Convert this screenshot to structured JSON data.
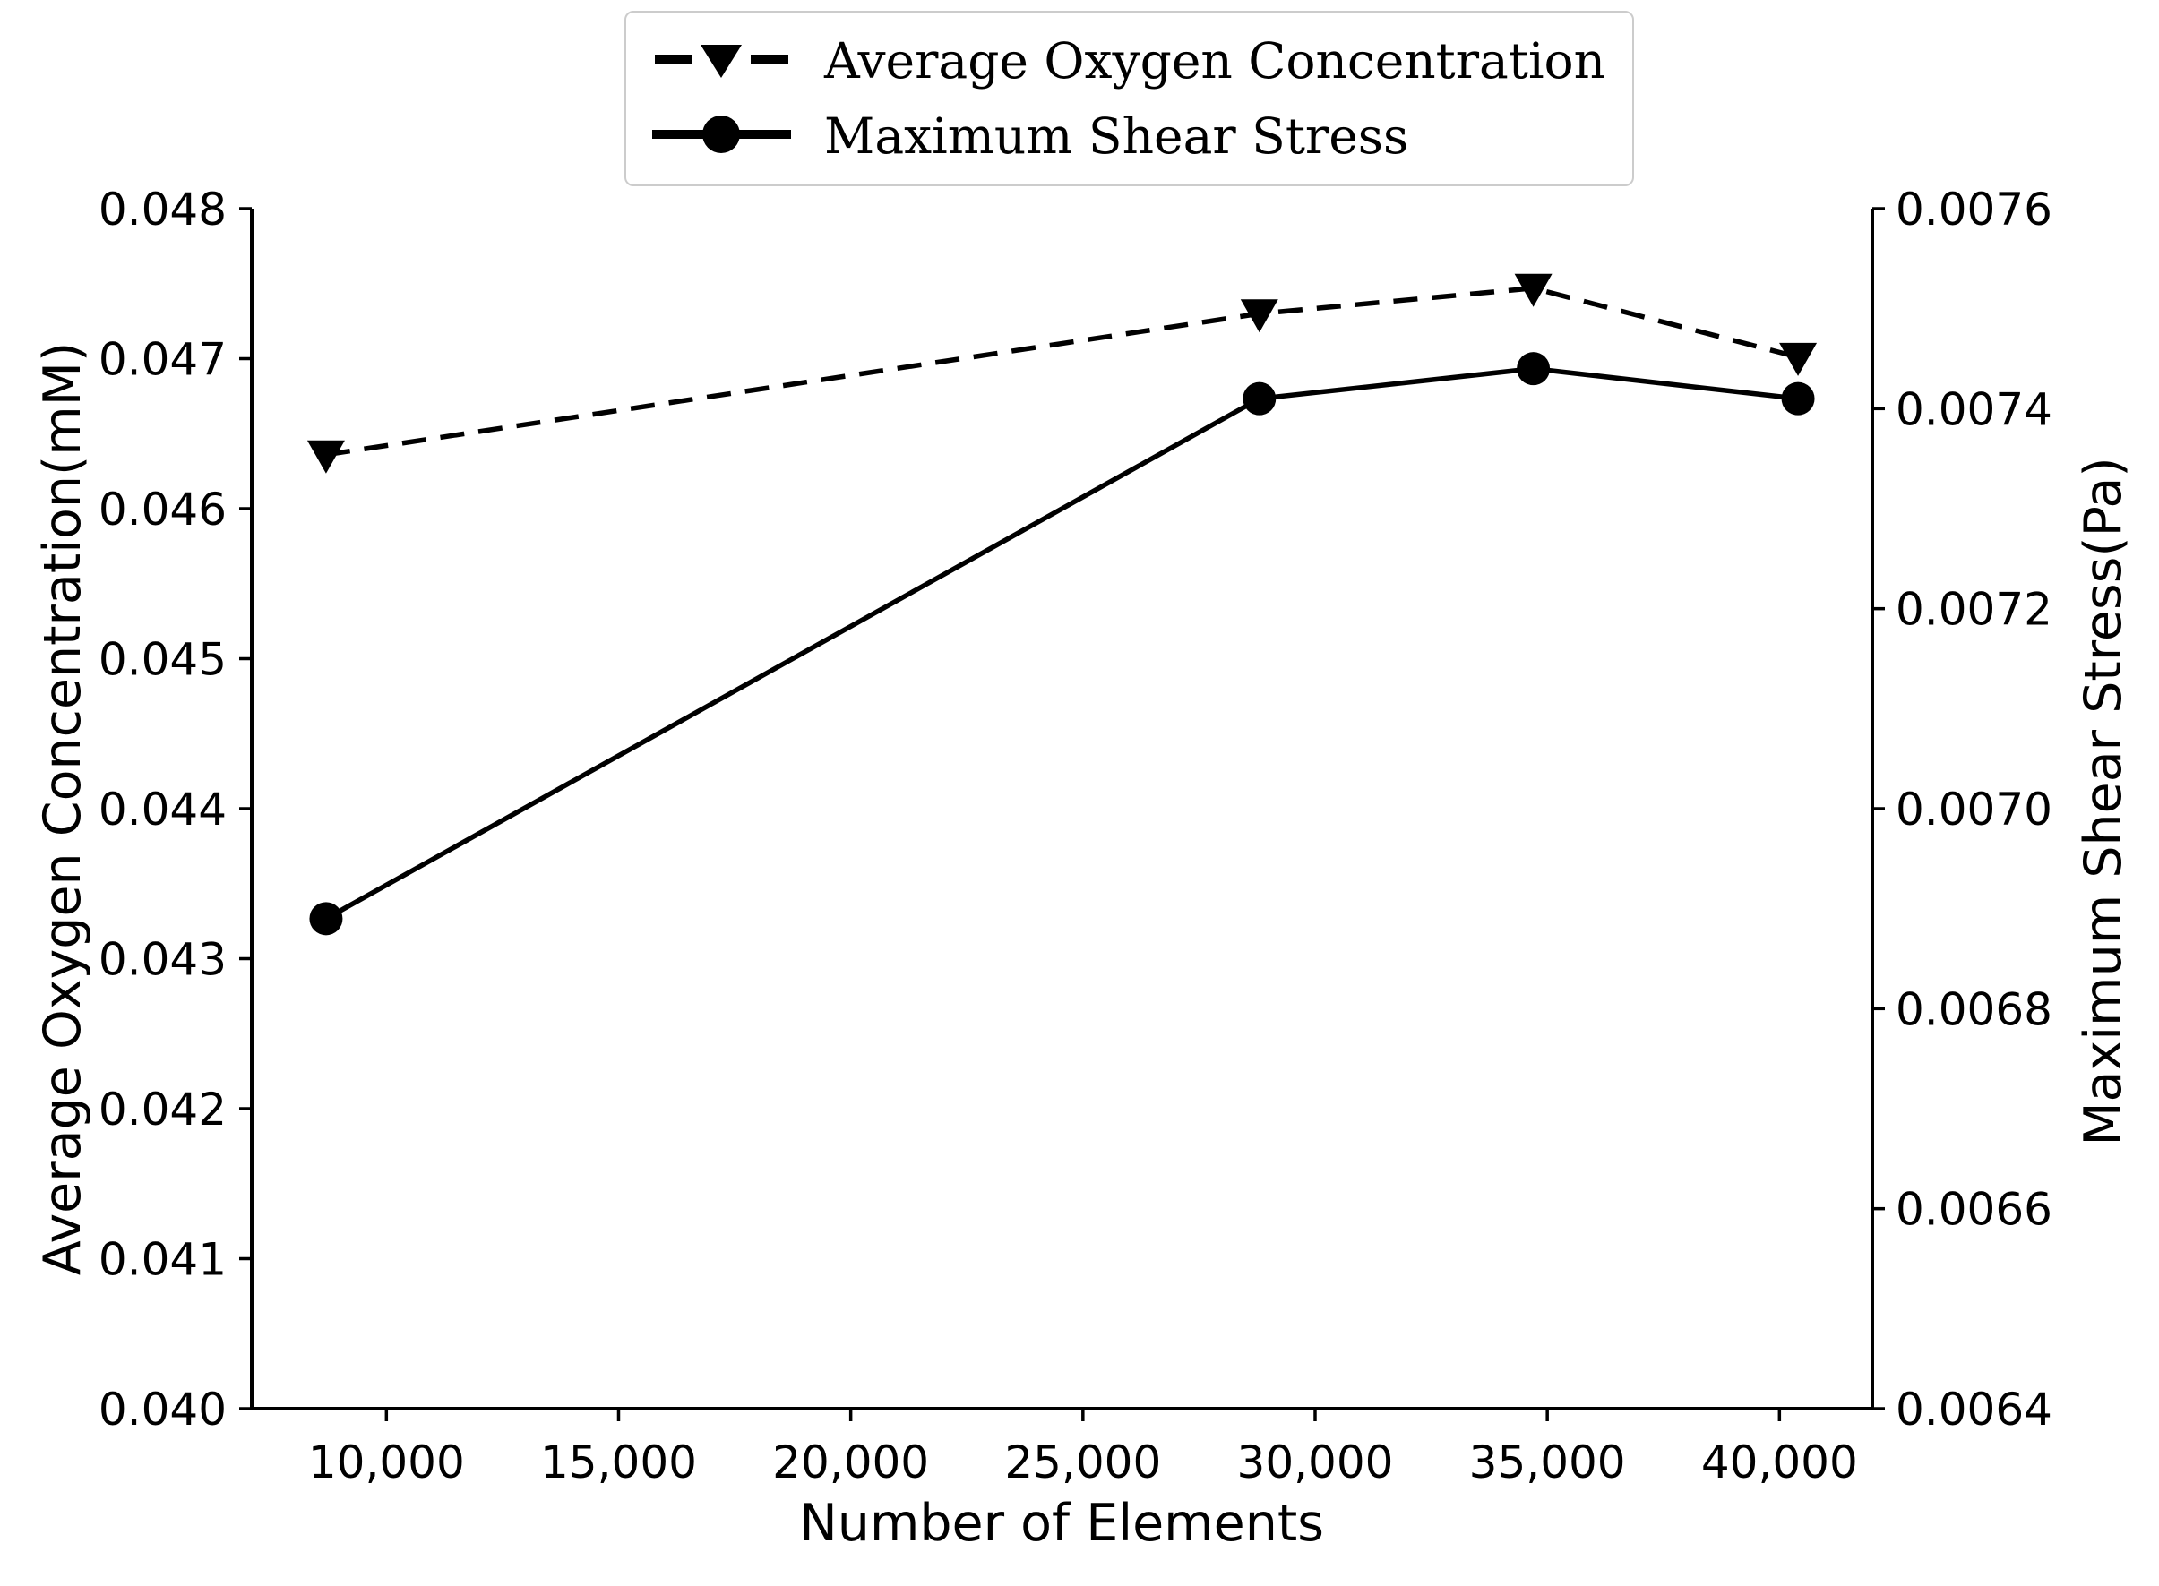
{
  "figure": {
    "background": "#ffffff"
  },
  "colors": {
    "line": "#000000",
    "text": "#000000",
    "legend_border": "#cccccc"
  },
  "legend": {
    "position": "top-center-above-plot",
    "items": [
      {
        "label": "Average Oxygen Concentration",
        "marker": "triangle-down",
        "line_style": "dashed"
      },
      {
        "label": "Maximum Shear Stress",
        "marker": "circle",
        "line_style": "solid"
      }
    ]
  },
  "axes": {
    "x": {
      "label": "Number of Elements",
      "range": [
        7100,
        42000
      ],
      "ticks": [
        10000,
        15000,
        20000,
        25000,
        30000,
        35000,
        40000
      ],
      "tick_format": "thousands-comma"
    },
    "y_left": {
      "label": "Average Oxygen Concentration(mM)",
      "range": [
        0.04,
        0.048
      ],
      "ticks": [
        0.04,
        0.041,
        0.042,
        0.043,
        0.044,
        0.045,
        0.046,
        0.047,
        0.048
      ],
      "decimals": 3
    },
    "y_right": {
      "label": "Maximum Shear Stress(Pa)",
      "range": [
        0.0064,
        0.0076
      ],
      "ticks": [
        0.0064,
        0.0066,
        0.0068,
        0.007,
        0.0072,
        0.0074,
        0.0076
      ],
      "decimals": 4
    }
  },
  "chart_data": {
    "type": "line",
    "title": "",
    "xlabel": "Number of Elements",
    "ylabel_left": "Average Oxygen Concentration(mM)",
    "ylabel_right": "Maximum Shear Stress(Pa)",
    "grid": false,
    "x": [
      8700,
      28800,
      34700,
      40400
    ],
    "series": [
      {
        "name": "Average Oxygen Concentration",
        "axis": "left",
        "line_style": "dashed",
        "marker": "triangle-down",
        "color": "#000000",
        "values": [
          0.04636,
          0.0473,
          0.04747,
          0.04701
        ]
      },
      {
        "name": "Maximum Shear Stress",
        "axis": "right",
        "line_style": "solid",
        "marker": "circle",
        "color": "#000000",
        "values": [
          0.00689,
          0.00741,
          0.00744,
          0.00741
        ]
      }
    ],
    "xlim": [
      7100,
      42000
    ],
    "ylim_left": [
      0.04,
      0.048
    ],
    "ylim_right": [
      0.0064,
      0.0076
    ]
  }
}
